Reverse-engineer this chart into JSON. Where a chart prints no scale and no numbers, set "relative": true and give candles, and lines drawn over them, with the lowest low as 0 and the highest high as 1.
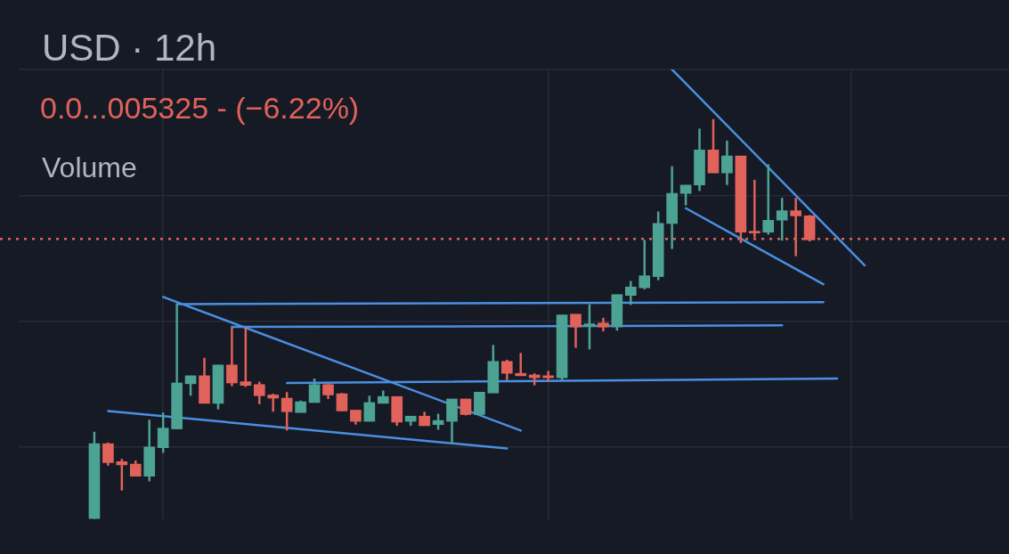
{
  "chart_data": {
    "type": "candlestick",
    "title": "USD · 12h",
    "subtitle": "0.0...005325 - (−6.22%)",
    "annotations": [
      "Volume"
    ],
    "relative": true,
    "grid": true,
    "categories": [
      null,
      null,
      null,
      null,
      null,
      null,
      null,
      null,
      null,
      null,
      null,
      null,
      null,
      null,
      null,
      null,
      null,
      null,
      null,
      null,
      null,
      null,
      null,
      null,
      null,
      null,
      null,
      null,
      null,
      null,
      null,
      null,
      null,
      null,
      null,
      null,
      null,
      null,
      null,
      null,
      null,
      null,
      null,
      null,
      null,
      null,
      null,
      null,
      null,
      null,
      null,
      null,
      null,
      null,
      null,
      null,
      null,
      null,
      null,
      null,
      null,
      null,
      null,
      null,
      null,
      null,
      null,
      null,
      null,
      null,
      null,
      null
    ],
    "ohlc": [
      null,
      null,
      null,
      null,
      null,
      [
        0,
        0.218,
        0,
        0.188
      ],
      [
        0.188,
        0.191,
        0.133,
        0.141
      ],
      [
        0.143,
        0.15,
        0.071,
        0.135
      ],
      [
        0.137,
        0.146,
        0.107,
        0.107
      ],
      [
        0.107,
        0.248,
        0.094,
        0.18
      ],
      [
        0.178,
        0.266,
        0.165,
        0.227
      ],
      [
        0.225,
        0.537,
        0.225,
        0.34
      ],
      [
        0.338,
        0.358,
        0.308,
        0.358
      ],
      [
        0.358,
        0.403,
        0.289,
        0.289
      ],
      [
        0.289,
        0.385,
        0.274,
        0.385
      ],
      [
        0.385,
        0.478,
        0.332,
        0.34
      ],
      [
        0.343,
        0.478,
        0.33,
        0.334
      ],
      [
        0.336,
        0.343,
        0.287,
        0.308
      ],
      [
        0.31,
        0.313,
        0.268,
        0.302
      ],
      [
        0.302,
        0.317,
        0.221,
        0.268
      ],
      [
        0.266,
        0.296,
        0.266,
        0.293
      ],
      [
        0.291,
        0.351,
        0.291,
        0.336
      ],
      [
        0.336,
        0.338,
        0.3,
        0.31
      ],
      [
        0.313,
        0.315,
        0.27,
        0.27
      ],
      [
        0.272,
        0.272,
        0.236,
        0.244
      ],
      [
        0.244,
        0.308,
        0.244,
        0.291
      ],
      [
        0.289,
        0.321,
        0.289,
        0.306
      ],
      [
        0.306,
        0.306,
        0.233,
        0.242
      ],
      [
        0.244,
        0.257,
        0.233,
        0.257
      ],
      [
        0.257,
        0.268,
        0.233,
        0.233
      ],
      [
        0.236,
        0.263,
        0.223,
        0.246
      ],
      [
        0.244,
        0.3,
        0.188,
        0.3
      ],
      [
        0.3,
        0.3,
        0.259,
        0.261
      ],
      [
        0.261,
        0.317,
        0.261,
        0.317
      ],
      [
        0.315,
        0.435,
        0.315,
        0.394
      ],
      [
        0.394,
        0.398,
        0.347,
        0.364
      ],
      [
        0.364,
        0.415,
        0.358,
        0.358
      ],
      [
        0.36,
        0.364,
        0.334,
        0.353
      ],
      [
        0.358,
        0.37,
        0.343,
        0.353
      ],
      [
        0.353,
        0.51,
        0.347,
        0.51
      ],
      [
        0.512,
        0.512,
        0.428,
        0.48
      ],
      [
        0.482,
        0.537,
        0.424,
        0.488
      ],
      [
        0.49,
        0.503,
        0.469,
        0.48
      ],
      [
        0.48,
        0.561,
        0.471,
        0.561
      ],
      [
        0.559,
        0.595,
        0.535,
        0.58
      ],
      [
        0.578,
        0.698,
        0.574,
        0.608
      ],
      [
        0.606,
        0.769,
        0.597,
        0.739
      ],
      [
        0.739,
        0.882,
        0.675,
        0.814
      ],
      [
        0.814,
        0.835,
        0.784,
        0.835
      ],
      [
        0.835,
        0.976,
        0.82,
        0.923
      ],
      [
        0.923,
        1,
        0.865,
        0.865
      ],
      [
        0.865,
        0.946,
        0.835,
        0.908
      ],
      [
        0.908,
        0.908,
        0.69,
        0.717
      ],
      [
        0.719,
        0.848,
        0.704,
        0.715
      ],
      [
        0.717,
        0.887,
        0.711,
        0.747
      ],
      [
        0.747,
        0.803,
        0.696,
        0.771
      ],
      [
        0.771,
        0.803,
        0.657,
        0.758
      ],
      [
        0.758,
        0.76,
        0.694,
        0.698
      ],
      null,
      null,
      null,
      null,
      null,
      null,
      null,
      null,
      null,
      null,
      null,
      null,
      null,
      null
    ],
    "colors": [
      null,
      null,
      null,
      null,
      null,
      "#4da393",
      "#e0625a",
      "#e0625a",
      "#e0625a",
      "#4da393",
      "#4da393",
      "#4da393",
      "#4da393",
      "#e0625a",
      "#4da393",
      "#e0625a",
      "#e0625a",
      "#e0625a",
      "#e0625a",
      "#e0625a",
      "#4da393",
      "#4da393",
      "#e0625a",
      "#e0625a",
      "#e0625a",
      "#4da393",
      "#4da393",
      "#e0625a",
      "#4da393",
      "#e0625a",
      "#4da393",
      "#4da393",
      "#e0625a",
      "#4da393",
      "#4da393",
      "#e0625a",
      "#e0625a",
      "#e0625a",
      "#e0625a",
      "#4da393",
      "#e0625a",
      "#4da393",
      "#e0625a",
      "#4da393",
      "#4da393",
      "#4da393",
      "#4da393",
      "#4da393",
      "#4da393",
      "#4da393",
      "#e0625a",
      "#4da393",
      "#e0625a",
      "#e0625a",
      "#4da393",
      "#4da393",
      "#e0625a",
      "#e0625a",
      null,
      null,
      null,
      null,
      null,
      null,
      null,
      null,
      null,
      null,
      null,
      null,
      null,
      null
    ],
    "series": [
      {
        "type": "line",
        "color": "#4a8fe2",
        "values": [
          null,
          null,
          null,
          null,
          null,
          null,
          null,
          null,
          null,
          null,
          0.555,
          null,
          null,
          null,
          null,
          null,
          null,
          null,
          null,
          null,
          null,
          null,
          null,
          null,
          null,
          null,
          null,
          null,
          null,
          null,
          null,
          null,
          null,
          null,
          null,
          null,
          0.221,
          null,
          null,
          null,
          null,
          null,
          null,
          null,
          null,
          null,
          null,
          null,
          null,
          null,
          null,
          null,
          null,
          null,
          null,
          null,
          null,
          null,
          null,
          null,
          null,
          null,
          null,
          null,
          null,
          null,
          null,
          null,
          null,
          null,
          null,
          null
        ]
      },
      {
        "type": "line",
        "color": "#4a8fe2",
        "values": [
          null,
          null,
          null,
          null,
          null,
          null,
          0.27,
          null,
          null,
          null,
          null,
          null,
          null,
          null,
          null,
          null,
          null,
          null,
          null,
          null,
          null,
          null,
          null,
          null,
          null,
          null,
          null,
          null,
          null,
          null,
          null,
          null,
          null,
          null,
          null,
          0.176,
          null,
          null,
          null,
          null,
          null,
          null,
          null,
          null,
          null,
          null,
          null,
          null,
          null,
          null,
          null,
          null,
          null,
          null,
          null,
          null,
          null,
          null,
          null,
          null,
          null,
          null,
          null,
          null,
          null,
          null,
          null,
          null,
          null,
          null,
          null,
          null
        ]
      },
      {
        "type": "line",
        "color": "#4a8fe2",
        "values": [
          null,
          null,
          null,
          null,
          null,
          null,
          null,
          null,
          null,
          null,
          null,
          0.537,
          null,
          null,
          null,
          null,
          null,
          null,
          null,
          null,
          null,
          null,
          null,
          null,
          null,
          null,
          null,
          null,
          null,
          null,
          null,
          null,
          null,
          null,
          null,
          null,
          null,
          null,
          null,
          null,
          null,
          null,
          null,
          null,
          null,
          null,
          null,
          null,
          null,
          null,
          null,
          null,
          null,
          null,
          null,
          null,
          null,
          null,
          0.542,
          null,
          null,
          null,
          null,
          null,
          null,
          null,
          null,
          null,
          null,
          null,
          null,
          null
        ]
      },
      {
        "type": "line",
        "color": "#4a8fe2",
        "values": [
          null,
          null,
          null,
          null,
          null,
          null,
          null,
          null,
          null,
          null,
          null,
          null,
          null,
          null,
          null,
          0.48,
          null,
          null,
          null,
          null,
          null,
          null,
          null,
          null,
          null,
          null,
          null,
          null,
          null,
          null,
          null,
          null,
          null,
          null,
          null,
          null,
          null,
          null,
          null,
          null,
          null,
          null,
          null,
          null,
          null,
          null,
          null,
          null,
          null,
          null,
          null,
          null,
          null,
          null,
          null,
          0.484,
          null,
          null,
          null,
          null,
          null,
          null,
          null,
          null,
          null,
          null,
          null,
          null,
          null,
          null,
          null,
          null
        ]
      },
      {
        "type": "line",
        "color": "#4a8fe2",
        "values": [
          null,
          null,
          null,
          null,
          null,
          null,
          null,
          null,
          null,
          null,
          null,
          null,
          null,
          null,
          null,
          null,
          null,
          null,
          null,
          0.34,
          null,
          null,
          null,
          null,
          null,
          null,
          null,
          null,
          null,
          null,
          null,
          null,
          null,
          null,
          null,
          null,
          null,
          null,
          null,
          null,
          null,
          null,
          null,
          null,
          null,
          null,
          null,
          null,
          null,
          null,
          null,
          null,
          null,
          null,
          null,
          null,
          null,
          null,
          null,
          0.351,
          null,
          null,
          null,
          null,
          null,
          null,
          null,
          null,
          null,
          null,
          null,
          null
        ]
      },
      {
        "type": "line",
        "color": "#4a8fe2",
        "values": [
          null,
          null,
          null,
          null,
          null,
          null,
          null,
          null,
          null,
          null,
          null,
          null,
          null,
          null,
          null,
          null,
          null,
          null,
          null,
          null,
          null,
          null,
          null,
          null,
          null,
          null,
          null,
          null,
          null,
          null,
          null,
          null,
          null,
          null,
          null,
          null,
          null,
          null,
          null,
          null,
          null,
          null,
          null,
          null,
          null,
          null,
          null,
          1.124,
          null,
          null,
          null,
          null,
          null,
          null,
          null,
          null,
          null,
          null,
          null,
          null,
          null,
          0.634,
          null,
          null,
          null,
          null,
          null,
          null,
          null,
          null,
          null,
          null
        ]
      },
      {
        "type": "line",
        "color": "#4a8fe2",
        "values": [
          null,
          null,
          null,
          null,
          null,
          null,
          null,
          null,
          null,
          null,
          null,
          null,
          null,
          null,
          null,
          null,
          null,
          null,
          null,
          null,
          null,
          null,
          null,
          null,
          null,
          null,
          null,
          null,
          null,
          null,
          null,
          null,
          null,
          null,
          null,
          null,
          null,
          null,
          null,
          null,
          null,
          null,
          null,
          null,
          null,
          null,
          null,
          null,
          0.777,
          null,
          null,
          null,
          null,
          null,
          null,
          null,
          null,
          null,
          0.587,
          null,
          null,
          null,
          null,
          null,
          null,
          null,
          null,
          null,
          null,
          null,
          null,
          null
        ]
      }
    ],
    "ref_lines": [
      {
        "axis": "y",
        "value": 0.7,
        "color": "#e0625a",
        "line_style": "dotted"
      }
    ]
  }
}
